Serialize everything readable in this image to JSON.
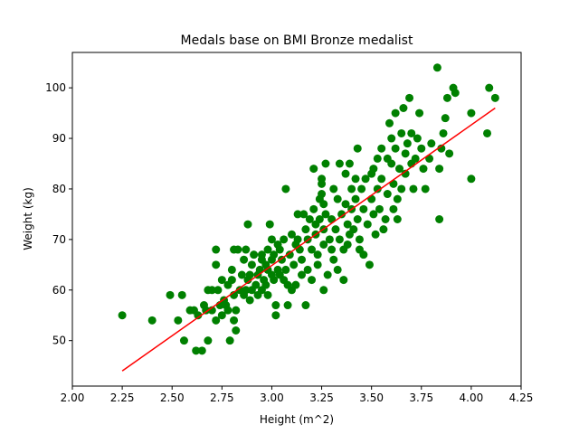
{
  "chart_data": {
    "type": "scatter",
    "title": "Medals base on BMI Bronze medalist",
    "xlabel": "Height (m^2)",
    "ylabel": "Weight (kg)",
    "xlim": [
      2.0,
      4.25
    ],
    "ylim": [
      41,
      107
    ],
    "xticks": [
      "2.00",
      "2.25",
      "2.50",
      "2.75",
      "3.00",
      "3.25",
      "3.50",
      "3.75",
      "4.00",
      "4.25"
    ],
    "yticks": [
      "50",
      "60",
      "70",
      "80",
      "90",
      "100"
    ],
    "grid": false,
    "colors": {
      "points": "#008000",
      "trendline": "#ff0000"
    },
    "trendline": {
      "x": [
        2.25,
        4.12
      ],
      "y": [
        44,
        96
      ]
    },
    "series": [
      {
        "points": [
          [
            2.25,
            55
          ],
          [
            2.4,
            54
          ],
          [
            2.49,
            59
          ],
          [
            2.53,
            54
          ],
          [
            2.55,
            59
          ],
          [
            2.56,
            50
          ],
          [
            2.59,
            56
          ],
          [
            2.61,
            56
          ],
          [
            2.62,
            48
          ],
          [
            2.63,
            55
          ],
          [
            2.65,
            48
          ],
          [
            2.66,
            57
          ],
          [
            2.67,
            56
          ],
          [
            2.68,
            60
          ],
          [
            2.68,
            50
          ],
          [
            2.7,
            60
          ],
          [
            2.7,
            56
          ],
          [
            2.72,
            68
          ],
          [
            2.72,
            65
          ],
          [
            2.72,
            54
          ],
          [
            2.73,
            60
          ],
          [
            2.74,
            57
          ],
          [
            2.75,
            62
          ],
          [
            2.75,
            55
          ],
          [
            2.76,
            58
          ],
          [
            2.77,
            57
          ],
          [
            2.78,
            56
          ],
          [
            2.78,
            61
          ],
          [
            2.79,
            50
          ],
          [
            2.8,
            62
          ],
          [
            2.8,
            64
          ],
          [
            2.81,
            68
          ],
          [
            2.81,
            59
          ],
          [
            2.81,
            54
          ],
          [
            2.82,
            52
          ],
          [
            2.82,
            56
          ],
          [
            2.83,
            68
          ],
          [
            2.84,
            60
          ],
          [
            2.85,
            63
          ],
          [
            2.86,
            59
          ],
          [
            2.86,
            66
          ],
          [
            2.87,
            60
          ],
          [
            2.87,
            68
          ],
          [
            2.88,
            62
          ],
          [
            2.88,
            73
          ],
          [
            2.89,
            58
          ],
          [
            2.89,
            63
          ],
          [
            2.9,
            60
          ],
          [
            2.9,
            65
          ],
          [
            2.91,
            67
          ],
          [
            2.92,
            61
          ],
          [
            2.93,
            59
          ],
          [
            2.93,
            63
          ],
          [
            2.94,
            64
          ],
          [
            2.95,
            60
          ],
          [
            2.95,
            66
          ],
          [
            2.95,
            67
          ],
          [
            2.96,
            62
          ],
          [
            2.97,
            61
          ],
          [
            2.97,
            65
          ],
          [
            2.98,
            59
          ],
          [
            2.98,
            64
          ],
          [
            2.98,
            68
          ],
          [
            2.99,
            73
          ],
          [
            3.0,
            63
          ],
          [
            3.0,
            66
          ],
          [
            3.0,
            70
          ],
          [
            3.01,
            62
          ],
          [
            3.01,
            67
          ],
          [
            3.02,
            57
          ],
          [
            3.02,
            55
          ],
          [
            3.03,
            64
          ],
          [
            3.03,
            69
          ],
          [
            3.04,
            63
          ],
          [
            3.04,
            68
          ],
          [
            3.05,
            66
          ],
          [
            3.06,
            62
          ],
          [
            3.06,
            70
          ],
          [
            3.07,
            80
          ],
          [
            3.07,
            64
          ],
          [
            3.08,
            61
          ],
          [
            3.08,
            57
          ],
          [
            3.09,
            67
          ],
          [
            3.1,
            60
          ],
          [
            3.1,
            71
          ],
          [
            3.11,
            65
          ],
          [
            3.12,
            61
          ],
          [
            3.12,
            69
          ],
          [
            3.13,
            70
          ],
          [
            3.13,
            75
          ],
          [
            3.14,
            68
          ],
          [
            3.15,
            66
          ],
          [
            3.15,
            63
          ],
          [
            3.16,
            75
          ],
          [
            3.17,
            72
          ],
          [
            3.17,
            57
          ],
          [
            3.18,
            64
          ],
          [
            3.18,
            70
          ],
          [
            3.19,
            74
          ],
          [
            3.2,
            68
          ],
          [
            3.2,
            62
          ],
          [
            3.21,
            84
          ],
          [
            3.21,
            76
          ],
          [
            3.22,
            73
          ],
          [
            3.22,
            71
          ],
          [
            3.23,
            67
          ],
          [
            3.23,
            65
          ],
          [
            3.24,
            74
          ],
          [
            3.24,
            78
          ],
          [
            3.25,
            82
          ],
          [
            3.25,
            79
          ],
          [
            3.25,
            81
          ],
          [
            3.26,
            60
          ],
          [
            3.26,
            69
          ],
          [
            3.26,
            77
          ],
          [
            3.26,
            72
          ],
          [
            3.27,
            75
          ],
          [
            3.27,
            85
          ],
          [
            3.28,
            63
          ],
          [
            3.29,
            70
          ],
          [
            3.3,
            68
          ],
          [
            3.3,
            74
          ],
          [
            3.31,
            80
          ],
          [
            3.31,
            66
          ],
          [
            3.32,
            72
          ],
          [
            3.33,
            78
          ],
          [
            3.33,
            64
          ],
          [
            3.34,
            85
          ],
          [
            3.34,
            70
          ],
          [
            3.35,
            75
          ],
          [
            3.36,
            68
          ],
          [
            3.36,
            62
          ],
          [
            3.37,
            83
          ],
          [
            3.37,
            77
          ],
          [
            3.38,
            69
          ],
          [
            3.38,
            73
          ],
          [
            3.39,
            85
          ],
          [
            3.39,
            71
          ],
          [
            3.4,
            80
          ],
          [
            3.4,
            76
          ],
          [
            3.41,
            72
          ],
          [
            3.42,
            82
          ],
          [
            3.42,
            78
          ],
          [
            3.43,
            88
          ],
          [
            3.43,
            74
          ],
          [
            3.44,
            70
          ],
          [
            3.44,
            68
          ],
          [
            3.45,
            80
          ],
          [
            3.46,
            76
          ],
          [
            3.46,
            67
          ],
          [
            3.47,
            82
          ],
          [
            3.48,
            73
          ],
          [
            3.49,
            65
          ],
          [
            3.5,
            83
          ],
          [
            3.5,
            78
          ],
          [
            3.51,
            84
          ],
          [
            3.51,
            75
          ],
          [
            3.52,
            71
          ],
          [
            3.53,
            86
          ],
          [
            3.53,
            80
          ],
          [
            3.54,
            76
          ],
          [
            3.55,
            88
          ],
          [
            3.55,
            82
          ],
          [
            3.56,
            72
          ],
          [
            3.57,
            74
          ],
          [
            3.58,
            86
          ],
          [
            3.58,
            79
          ],
          [
            3.59,
            93
          ],
          [
            3.6,
            90
          ],
          [
            3.6,
            85
          ],
          [
            3.61,
            81
          ],
          [
            3.61,
            76
          ],
          [
            3.62,
            88
          ],
          [
            3.62,
            95
          ],
          [
            3.63,
            78
          ],
          [
            3.63,
            74
          ],
          [
            3.64,
            84
          ],
          [
            3.65,
            91
          ],
          [
            3.65,
            80
          ],
          [
            3.66,
            96
          ],
          [
            3.67,
            87
          ],
          [
            3.67,
            83
          ],
          [
            3.68,
            89
          ],
          [
            3.69,
            98
          ],
          [
            3.7,
            91
          ],
          [
            3.7,
            85
          ],
          [
            3.71,
            80
          ],
          [
            3.72,
            86
          ],
          [
            3.73,
            90
          ],
          [
            3.74,
            95
          ],
          [
            3.75,
            88
          ],
          [
            3.76,
            84
          ],
          [
            3.77,
            80
          ],
          [
            3.79,
            86
          ],
          [
            3.8,
            89
          ],
          [
            3.83,
            104
          ],
          [
            3.84,
            74
          ],
          [
            3.84,
            84
          ],
          [
            3.85,
            88
          ],
          [
            3.86,
            91
          ],
          [
            3.87,
            94
          ],
          [
            3.88,
            98
          ],
          [
            3.89,
            87
          ],
          [
            3.91,
            100
          ],
          [
            3.92,
            99
          ],
          [
            4.0,
            95
          ],
          [
            4.0,
            82
          ],
          [
            4.08,
            91
          ],
          [
            4.09,
            100
          ],
          [
            4.12,
            98
          ]
        ]
      }
    ]
  }
}
